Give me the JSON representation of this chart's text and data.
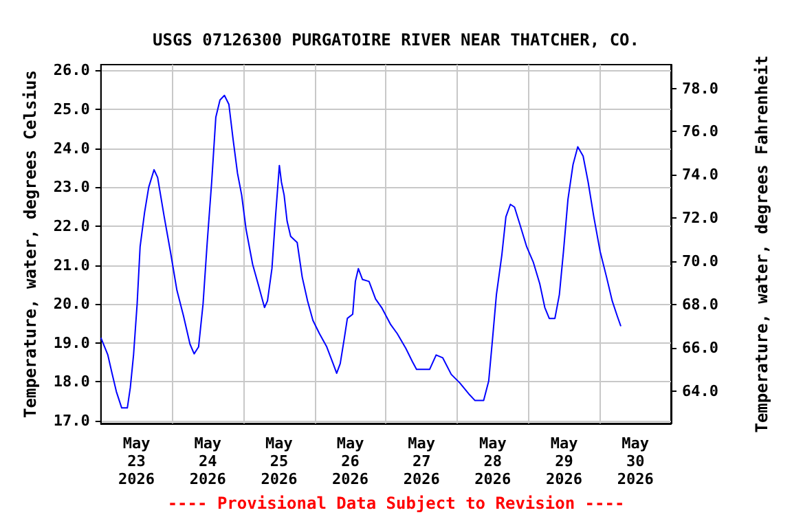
{
  "chart_data": {
    "type": "line",
    "title": "USGS 07126300 PURGATOIRE RIVER NEAR THATCHER, CO.",
    "ylabel": "Temperature, water, degrees Celsius",
    "y2label": "Temperature, water, degrees Fahrenheit",
    "annotations": [
      "---- Provisional Data Subject to Revision ----"
    ],
    "xlim": [
      "2026-05-23T00:00",
      "2026-05-31T00:00"
    ],
    "xticks": [
      {
        "value": "2026-05-23T12:00",
        "label": "May\n23\n2026"
      },
      {
        "value": "2026-05-24T12:00",
        "label": "May\n24\n2026"
      },
      {
        "value": "2026-05-25T12:00",
        "label": "May\n25\n2026"
      },
      {
        "value": "2026-05-26T12:00",
        "label": "May\n26\n2026"
      },
      {
        "value": "2026-05-27T12:00",
        "label": "May\n27\n2026"
      },
      {
        "value": "2026-05-28T12:00",
        "label": "May\n28\n2026"
      },
      {
        "value": "2026-05-29T12:00",
        "label": "May\n29\n2026"
      },
      {
        "value": "2026-05-30T12:00",
        "label": "May\n30\n2026"
      },
      {
        "value": "2026-05-24T00:00",
        "label": null
      },
      {
        "value": "2026-05-25T00:00",
        "label": null
      },
      {
        "value": "2026-05-26T00:00",
        "label": null
      },
      {
        "value": "2026-05-27T00:00",
        "label": null
      },
      {
        "value": "2026-05-28T00:00",
        "label": null
      },
      {
        "value": "2026-05-29T00:00",
        "label": null
      },
      {
        "value": "2026-05-30T00:00",
        "label": null
      }
    ],
    "ylim": [
      16.93,
      26.15
    ],
    "yticks": [
      {
        "value": 17,
        "label": "17.0"
      },
      {
        "value": 18,
        "label": "18.0"
      },
      {
        "value": 19,
        "label": "19.0"
      },
      {
        "value": 20,
        "label": "20.0"
      },
      {
        "value": 21,
        "label": "21.0"
      },
      {
        "value": 22,
        "label": "22.0"
      },
      {
        "value": 23,
        "label": "23.0"
      },
      {
        "value": 24,
        "label": "24.0"
      },
      {
        "value": 25,
        "label": "25.0"
      },
      {
        "value": 26,
        "label": "26.0"
      }
    ],
    "y2lim": [
      62.5,
      79.1
    ],
    "y2ticks": [
      {
        "value": 64,
        "label": "64.0"
      },
      {
        "value": 66,
        "label": "66.0"
      },
      {
        "value": 68,
        "label": "68.0"
      },
      {
        "value": 70,
        "label": "70.0"
      },
      {
        "value": 72,
        "label": "72.0"
      },
      {
        "value": 74,
        "label": "74.0"
      },
      {
        "value": 76,
        "label": "76.0"
      },
      {
        "value": 78,
        "label": "78.0"
      }
    ],
    "grid": true,
    "marker": "none",
    "line_style": "solid",
    "series": [
      {
        "color": "#0000ff",
        "x": [
          "2026-05-23T00:00",
          "2026-05-23T02:18",
          "2026-05-23T03:48",
          "2026-05-23T05:12",
          "2026-05-23T07:00",
          "2026-05-23T08:54",
          "2026-05-23T09:54",
          "2026-05-23T11:00",
          "2026-05-23T12:12",
          "2026-05-23T13:12",
          "2026-05-23T14:42",
          "2026-05-23T16:06",
          "2026-05-23T17:54",
          "2026-05-23T19:06",
          "2026-05-23T21:18",
          "2026-05-23T23:24",
          "2026-05-24T01:36",
          "2026-05-24T03:48",
          "2026-05-24T06:00",
          "2026-05-24T07:24",
          "2026-05-24T08:54",
          "2026-05-24T10:24",
          "2026-05-24T11:48",
          "2026-05-24T13:18",
          "2026-05-24T14:42",
          "2026-05-24T16:06",
          "2026-05-24T17:36",
          "2026-05-24T19:06",
          "2026-05-24T20:30",
          "2026-05-24T22:00",
          "2026-05-24T23:24",
          "2026-05-25T00:54",
          "2026-05-25T03:06",
          "2026-05-25T05:06",
          "2026-05-25T07:06",
          "2026-05-25T08:06",
          "2026-05-25T09:36",
          "2026-05-25T10:48",
          "2026-05-25T12:06",
          "2026-05-25T12:48",
          "2026-05-25T13:42",
          "2026-05-25T14:42",
          "2026-05-25T15:54",
          "2026-05-25T18:06",
          "2026-05-25T19:48",
          "2026-05-25T21:36",
          "2026-05-25T23:24",
          "2026-05-26T01:36",
          "2026-05-26T04:00",
          "2026-05-26T06:12",
          "2026-05-26T07:24",
          "2026-05-26T08:36",
          "2026-05-26T10:00",
          "2026-05-26T11:00",
          "2026-05-26T12:48",
          "2026-05-26T13:42",
          "2026-05-26T14:42",
          "2026-05-26T16:06",
          "2026-05-26T18:18",
          "2026-05-26T20:30",
          "2026-05-26T22:42",
          "2026-05-27T01:36",
          "2026-05-27T03:48",
          "2026-05-27T06:42",
          "2026-05-27T08:54",
          "2026-05-27T10:18",
          "2026-05-27T14:42",
          "2026-05-27T16:54",
          "2026-05-27T19:06",
          "2026-05-27T22:00",
          "2026-05-28T00:54",
          "2026-05-28T03:54",
          "2026-05-28T06:00",
          "2026-05-28T08:54",
          "2026-05-28T10:36",
          "2026-05-28T11:48",
          "2026-05-28T13:12",
          "2026-05-28T15:00",
          "2026-05-28T16:24",
          "2026-05-28T17:54",
          "2026-05-28T19:18",
          "2026-05-28T21:12",
          "2026-05-28T23:24",
          "2026-05-29T01:36",
          "2026-05-29T03:48",
          "2026-05-29T05:30",
          "2026-05-29T07:00",
          "2026-05-29T08:54",
          "2026-05-29T10:24",
          "2026-05-29T11:48",
          "2026-05-29T13:18",
          "2026-05-29T15:00",
          "2026-05-29T16:36",
          "2026-05-29T18:24",
          "2026-05-29T20:06",
          "2026-05-29T22:00",
          "2026-05-30T00:06",
          "2026-05-30T02:18",
          "2026-05-30T04:12",
          "2026-05-30T05:54",
          "2026-05-30T07:06"
        ],
        "values": [
          19.13,
          18.7,
          18.2,
          17.75,
          17.33,
          17.33,
          17.85,
          18.7,
          20.0,
          21.47,
          22.35,
          23.0,
          23.45,
          23.25,
          22.25,
          21.35,
          20.35,
          19.7,
          18.97,
          18.72,
          18.9,
          20.0,
          21.58,
          23.13,
          24.8,
          25.24,
          25.36,
          25.13,
          24.24,
          23.36,
          22.8,
          21.91,
          21.02,
          20.47,
          19.91,
          20.08,
          20.91,
          22.24,
          23.56,
          23.13,
          22.8,
          22.13,
          21.74,
          21.58,
          20.69,
          20.08,
          19.58,
          19.24,
          18.91,
          18.47,
          18.22,
          18.47,
          19.13,
          19.63,
          19.74,
          20.58,
          20.91,
          20.63,
          20.58,
          20.13,
          19.89,
          19.47,
          19.24,
          18.86,
          18.52,
          18.32,
          18.32,
          18.69,
          18.62,
          18.19,
          17.97,
          17.69,
          17.52,
          17.52,
          18.02,
          19.02,
          20.24,
          21.24,
          22.24,
          22.56,
          22.49,
          22.02,
          21.47,
          21.08,
          20.52,
          19.91,
          19.63,
          19.63,
          20.24,
          21.36,
          22.69,
          23.58,
          24.04,
          23.8,
          23.13,
          22.24,
          21.36,
          20.69,
          20.08,
          19.69,
          19.43
        ]
      }
    ]
  }
}
